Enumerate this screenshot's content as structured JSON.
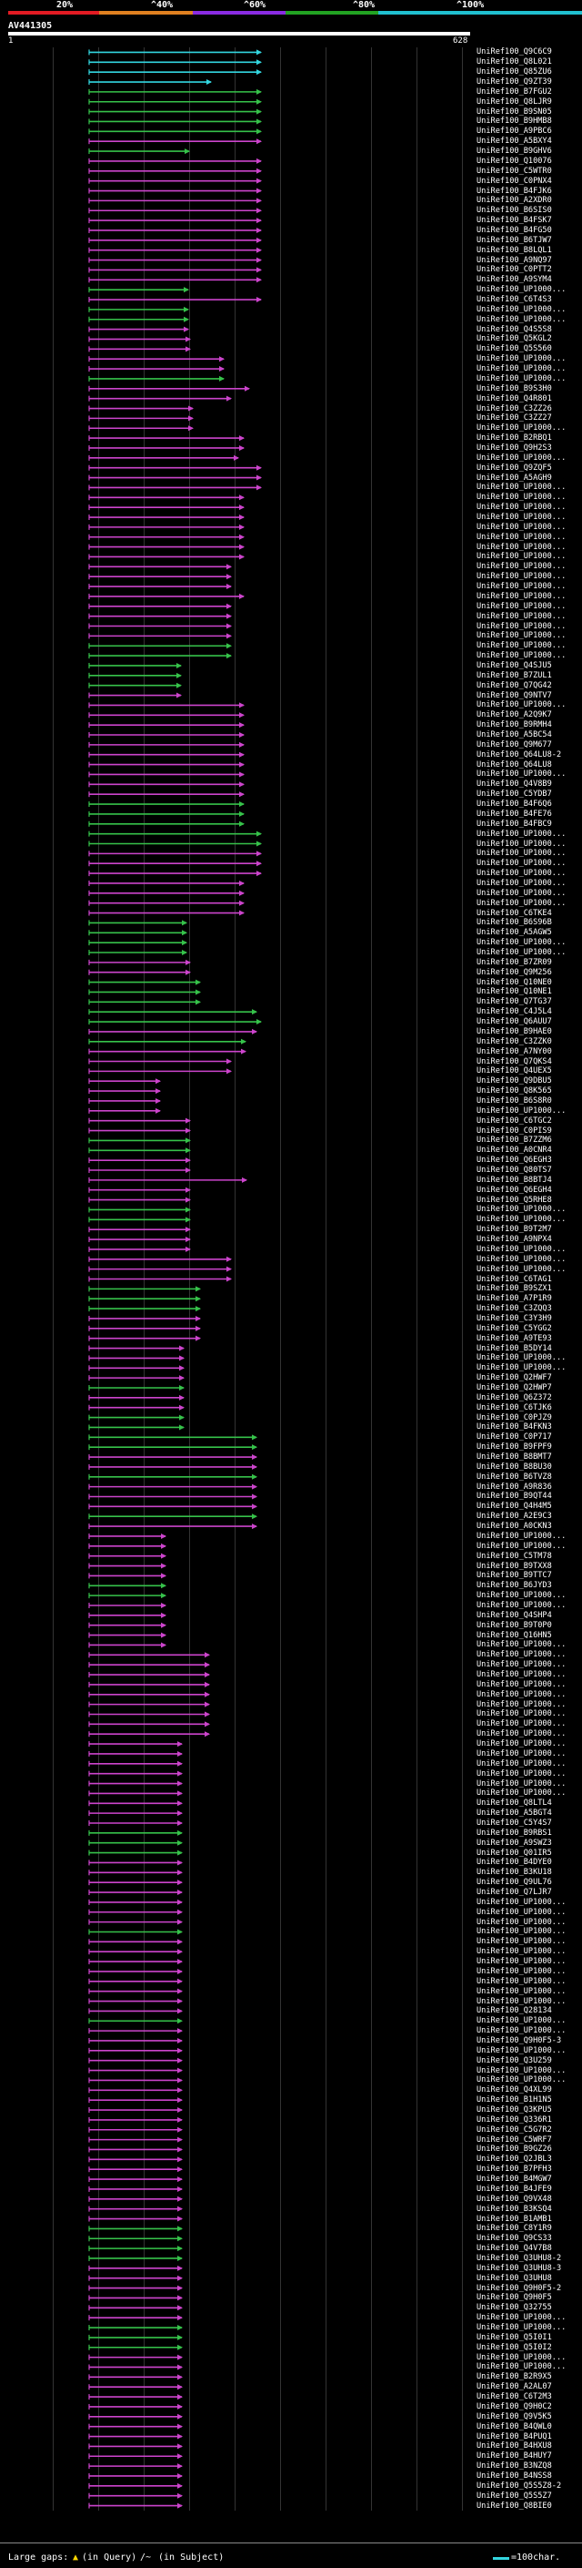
{
  "chart_data": {
    "type": "alignment-overview",
    "query": {
      "name": "AV441305",
      "start": 1,
      "end": 628
    },
    "identity_scale": {
      "labels": [
        "20%",
        "^40%",
        "^60%",
        "^80%",
        "^100%"
      ],
      "colors": [
        "#e31b23",
        "#e08020",
        "#8a2be2",
        "#22a322",
        "#20c0d0"
      ]
    },
    "hit_colors": {
      "cyan": "#33d6e0",
      "green": "#36c24a",
      "magenta": "#cc44cc"
    },
    "hit_names": [
      "UniRef100_Q9C6C9",
      "UniRef100_Q8L021",
      "UniRef100_Q85ZU6",
      "UniRef100_Q9ZT39",
      "UniRef100_B7FGU2",
      "UniRef100_Q8LJR9",
      "UniRef100_B9SN05",
      "UniRef100_B9HMB8",
      "UniRef100_A9PBC6",
      "UniRef100_A5BXY4",
      "UniRef100_B9GHV6",
      "UniRef100_Q10076",
      "UniRef100_C5WTR0",
      "UniRef100_C0PNX4",
      "UniRef100_B4FJK6",
      "UniRef100_A2XDR0",
      "UniRef100_B6SIS0",
      "UniRef100_B4FSK7",
      "UniRef100_B4FG50",
      "UniRef100_B6TJW7",
      "UniRef100_B8LQL1",
      "UniRef100_A9NQ97",
      "UniRef100_C0PTT2",
      "UniRef100_A9SYM4",
      "UniRef100_UP1000...",
      "UniRef100_C6T4S3",
      "UniRef100_UP1000...",
      "UniRef100_UP1000...",
      "UniRef100_Q4S5S8",
      "UniRef100_Q5KGL2",
      "UniRef100_Q5S560",
      "UniRef100_UP1000...",
      "UniRef100_UP1000...",
      "UniRef100_UP1000...",
      "UniRef100_B9S3H0",
      "UniRef100_Q4R801",
      "UniRef100_C3ZZ26",
      "UniRef100_C3ZZ27",
      "UniRef100_UP1000...",
      "UniRef100_B2RBQ1",
      "UniRef100_Q9H2S3",
      "UniRef100_UP1000...",
      "UniRef100_Q9ZQF5",
      "UniRef100_A5AGH9",
      "UniRef100_UP1000...",
      "UniRef100_UP1000...",
      "UniRef100_UP1000...",
      "UniRef100_UP1000...",
      "UniRef100_UP1000...",
      "UniRef100_UP1000...",
      "UniRef100_UP1000...",
      "UniRef100_UP1000...",
      "UniRef100_UP1000...",
      "UniRef100_UP1000...",
      "UniRef100_UP1000...",
      "UniRef100_UP1000...",
      "UniRef100_UP1000...",
      "UniRef100_UP1000...",
      "UniRef100_UP1000...",
      "UniRef100_UP1000...",
      "UniRef100_UP1000...",
      "UniRef100_UP1000...",
      "UniRef100_Q4SJU5",
      "UniRef100_B7ZUL1",
      "UniRef100_Q7QG42",
      "UniRef100_Q9NTV7",
      "UniRef100_UP1000...",
      "UniRef100_A2Q9K7",
      "UniRef100_B9RMH4",
      "UniRef100_A5BC54",
      "UniRef100_Q9M677",
      "UniRef100_Q64LU8-2",
      "UniRef100_Q64LU8",
      "UniRef100_UP1000...",
      "UniRef100_Q4V8B9",
      "UniRef100_C5YDB7",
      "UniRef100_B4F6Q6",
      "UniRef100_B4FE76",
      "UniRef100_B4FBC9",
      "UniRef100_UP1000...",
      "UniRef100_UP1000...",
      "UniRef100_UP1000...",
      "UniRef100_UP1000...",
      "UniRef100_UP1000...",
      "UniRef100_UP1000...",
      "UniRef100_UP1000...",
      "UniRef100_UP1000...",
      "UniRef100_C6TKE4",
      "UniRef100_B6S96B",
      "UniRef100_A5AGW5",
      "UniRef100_UP1000...",
      "UniRef100_UP1000...",
      "UniRef100_B7ZR09",
      "UniRef100_Q9M256",
      "UniRef100_Q10NE0",
      "UniRef100_Q10NE1",
      "UniRef100_Q7TG37",
      "UniRef100_C4J5L4",
      "UniRef100_Q6AUU7",
      "UniRef100_B9HAE0",
      "UniRef100_C3ZZK0",
      "UniRef100_A7NY00",
      "UniRef100_Q7QKS4",
      "UniRef100_Q4UEX5",
      "UniRef100_Q9DBU5",
      "UniRef100_Q8K565",
      "UniRef100_B6S8R0",
      "UniRef100_UP1000...",
      "UniRef100_C6TGC2",
      "UniRef100_C0PIS9",
      "UniRef100_B7ZZM6",
      "UniRef100_A0CNR4",
      "UniRef100_Q6EGH3",
      "UniRef100_Q80TS7",
      "UniRef100_B8BTJ4",
      "UniRef100_Q6EGH4",
      "UniRef100_Q5RHE8",
      "UniRef100_UP1000...",
      "UniRef100_UP1000...",
      "UniRef100_B9T2M7",
      "UniRef100_A9NPX4",
      "UniRef100_UP1000...",
      "UniRef100_UP1000...",
      "UniRef100_UP1000...",
      "UniRef100_C6TAG1",
      "UniRef100_B9SZX1",
      "UniRef100_A7P1R9",
      "UniRef100_C3ZQQ3",
      "UniRef100_C3Y3H9",
      "UniRef100_C5YGG2",
      "UniRef100_A9TE93",
      "UniRef100_B5DY14",
      "UniRef100_UP1000...",
      "UniRef100_UP1000...",
      "UniRef100_Q2HWF7",
      "UniRef100_Q2HWP7",
      "UniRef100_Q6Z372",
      "UniRef100_C6TJK6",
      "UniRef100_C0PJZ9",
      "UniRef100_B4FKN3",
      "UniRef100_C0P717",
      "UniRef100_B9FPF9",
      "UniRef100_B8BMT7",
      "UniRef100_B8BU30",
      "UniRef100_B6TVZ8",
      "UniRef100_A9R836",
      "UniRef100_B9QT44",
      "UniRef100_Q4H4M5",
      "UniRef100_A2E9C3",
      "UniRef100_A0CKN3",
      "UniRef100_UP1000...",
      "UniRef100_UP1000...",
      "UniRef100_C5TM78",
      "UniRef100_B9TXX8",
      "UniRef100_B9TTC7",
      "UniRef100_B6JYD3",
      "UniRef100_UP1000...",
      "UniRef100_UP1000...",
      "UniRef100_Q4SHP4",
      "UniRef100_B9T0P0",
      "UniRef100_Q16HN5",
      "UniRef100_UP1000...",
      "UniRef100_UP1000...",
      "UniRef100_UP1000...",
      "UniRef100_UP1000...",
      "UniRef100_UP1000...",
      "UniRef100_UP1000...",
      "UniRef100_UP1000...",
      "UniRef100_UP1000...",
      "UniRef100_UP1000...",
      "UniRef100_UP1000...",
      "UniRef100_UP1000...",
      "UniRef100_UP1000...",
      "UniRef100_UP1000...",
      "UniRef100_UP1000...",
      "UniRef100_UP1000...",
      "UniRef100_UP1000...",
      "UniRef100_Q8LTL4",
      "UniRef100_A5BGT4",
      "UniRef100_C5Y4S7",
      "UniRef100_B9RBS1",
      "UniRef100_A9SWZ3",
      "UniRef100_Q01IR5",
      "UniRef100_B4DYE0",
      "UniRef100_B3KU18",
      "UniRef100_Q9UL76",
      "UniRef100_Q7LJR7",
      "UniRef100_UP1000...",
      "UniRef100_UP1000...",
      "UniRef100_UP1000...",
      "UniRef100_UP1000...",
      "UniRef100_UP1000...",
      "UniRef100_UP1000...",
      "UniRef100_UP1000...",
      "UniRef100_UP1000...",
      "UniRef100_UP1000...",
      "UniRef100_UP1000...",
      "UniRef100_UP1000...",
      "UniRef100_Q28134",
      "UniRef100_UP1000...",
      "UniRef100_UP1000...",
      "UniRef100_Q9H0F5-3",
      "UniRef100_UP1000...",
      "UniRef100_Q3U259",
      "UniRef100_UP1000...",
      "UniRef100_UP1000...",
      "UniRef100_Q4XL99",
      "UniRef100_B1H1N5",
      "UniRef100_Q3KPU5",
      "UniRef100_Q336R1",
      "UniRef100_C5G7R2",
      "UniRef100_C5WRF7",
      "UniRef100_B9GZ26",
      "UniRef100_Q2JBL3",
      "UniRef100_B7PFH3",
      "UniRef100_B4MGW7",
      "UniRef100_B4JFE9",
      "UniRef100_Q9VX48",
      "UniRef100_B3KSQ4",
      "UniRef100_B1AMB1",
      "UniRef100_C8Y1R9",
      "UniRef100_Q9CS33",
      "UniRef100_Q4V7B8",
      "UniRef100_Q3UHU8-2",
      "UniRef100_Q3UHU8-3",
      "UniRef100_Q3UHU8",
      "UniRef100_Q9H0F5-2",
      "UniRef100_Q9H0F5",
      "UniRef100_Q32755",
      "UniRef100_UP1000...",
      "UniRef100_UP1000...",
      "UniRef100_Q5I0I1",
      "UniRef100_Q5I0I2",
      "UniRef100_UP1000...",
      "UniRef100_UP1000...",
      "UniRef100_B2R9X5",
      "UniRef100_A2AL07",
      "UniRef100_C6T2M3",
      "UniRef100_Q9H0C2",
      "UniRef100_Q9V5K5",
      "UniRef100_B4QWL0",
      "UniRef100_B4PUQ1",
      "UniRef100_B4HXU8",
      "UniRef100_B4HUY7",
      "UniRef100_B3NZQ8",
      "UniRef100_B4NSS8",
      "UniRef100_Q5S5Z8-2",
      "UniRef100_Q5S5Z7",
      "UniRef100_Q8BIE0"
    ],
    "footer": {
      "large_gaps_label": "Large gaps:",
      "in_query": "(in Query)",
      "in_subject": "(in Subject)",
      "scale_label": "=100char."
    }
  }
}
